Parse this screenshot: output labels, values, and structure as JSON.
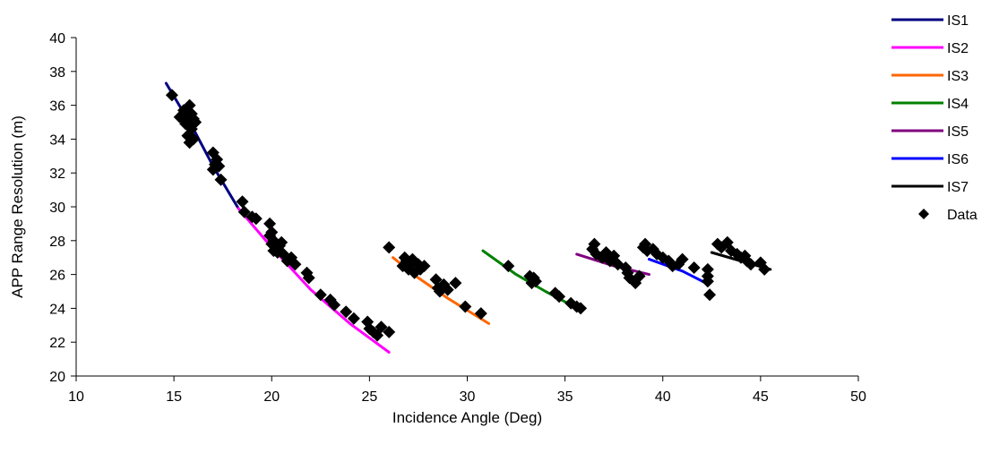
{
  "chart_data": {
    "type": "line",
    "title": "",
    "xlabel": "Incidence Angle (Deg)",
    "ylabel": "APP Range Resolution (m)",
    "xlim": [
      10,
      50
    ],
    "ylim": [
      20,
      40
    ],
    "xticks": [
      10,
      15,
      20,
      25,
      30,
      35,
      40,
      45,
      50
    ],
    "yticks": [
      20,
      22,
      24,
      26,
      28,
      30,
      32,
      34,
      36,
      38,
      40
    ],
    "grid": false,
    "legend_position": "right",
    "series": [
      {
        "name": "IS1",
        "color": "#000080",
        "x": [
          14.6,
          16.0,
          17.0,
          18.3
        ],
        "y": [
          37.3,
          34.6,
          32.4,
          29.9
        ]
      },
      {
        "name": "IS2",
        "color": "#FF00FF",
        "x": [
          18.3,
          20.0,
          22.0,
          24.0,
          26.0
        ],
        "y": [
          29.9,
          27.6,
          25.1,
          23.1,
          21.4
        ]
      },
      {
        "name": "IS3",
        "color": "#FF6600",
        "x": [
          26.2,
          27.5,
          29.0,
          31.1
        ],
        "y": [
          27.0,
          25.8,
          24.6,
          23.1
        ]
      },
      {
        "name": "IS4",
        "color": "#008000",
        "x": [
          30.8,
          32.5,
          34.0,
          35.8
        ],
        "y": [
          27.4,
          26.0,
          25.0,
          23.9
        ]
      },
      {
        "name": "IS5",
        "color": "#800080",
        "x": [
          35.6,
          37.5,
          39.3
        ],
        "y": [
          27.2,
          26.5,
          26.0
        ]
      },
      {
        "name": "IS6",
        "color": "#0000FF",
        "x": [
          39.3,
          41.0,
          42.2
        ],
        "y": [
          26.9,
          26.2,
          25.5
        ]
      },
      {
        "name": "IS7",
        "color": "#000000",
        "x": [
          42.5,
          44.0,
          45.5
        ],
        "y": [
          27.3,
          26.8,
          26.3
        ]
      },
      {
        "name": "Data",
        "color": "#000000",
        "marker": "diamond",
        "x": [
          14.9,
          15.3,
          15.5,
          15.6,
          15.7,
          15.8,
          15.9,
          15.9,
          16.0,
          16.0,
          16.1,
          15.8,
          15.6,
          15.7,
          17.0,
          17.1,
          17.2,
          17.3,
          17.0,
          17.4,
          18.5,
          18.6,
          19.0,
          19.2,
          19.9,
          19.9,
          20.0,
          20.0,
          20.1,
          20.1,
          20.2,
          20.3,
          20.4,
          20.5,
          20.6,
          20.8,
          21.0,
          21.2,
          21.8,
          21.9,
          22.5,
          23.0,
          23.2,
          23.8,
          24.2,
          24.9,
          25.0,
          25.2,
          25.4,
          25.6,
          26.0,
          26.0,
          26.7,
          26.8,
          26.9,
          27.0,
          27.1,
          27.2,
          27.3,
          27.5,
          27.6,
          27.8,
          28.4,
          28.5,
          28.6,
          28.8,
          29.0,
          29.4,
          29.9,
          30.7,
          32.1,
          33.2,
          33.3,
          33.4,
          33.5,
          34.5,
          34.7,
          35.3,
          35.6,
          35.8,
          36.4,
          36.5,
          36.6,
          36.9,
          37.1,
          37.3,
          37.5,
          37.7,
          38.1,
          38.2,
          38.3,
          38.6,
          38.8,
          39.0,
          39.1,
          39.2,
          39.5,
          39.7,
          40.0,
          40.3,
          40.5,
          40.8,
          41.0,
          41.6,
          42.3,
          42.3,
          42.3,
          42.4,
          42.8,
          43.0,
          43.3,
          43.5,
          43.8,
          44.0,
          44.2,
          44.3,
          44.5,
          45.0,
          45.2
        ],
        "y": [
          36.6,
          35.3,
          35.7,
          34.9,
          34.2,
          36.0,
          35.5,
          34.6,
          35.2,
          34.0,
          35.0,
          33.8,
          35.1,
          35.6,
          33.2,
          32.5,
          32.8,
          32.4,
          32.2,
          31.6,
          30.3,
          29.7,
          29.4,
          29.3,
          29.0,
          28.3,
          28.5,
          27.8,
          27.4,
          28.0,
          27.6,
          27.3,
          27.7,
          27.9,
          27.2,
          26.8,
          27.0,
          26.6,
          26.1,
          25.8,
          24.8,
          24.5,
          24.2,
          23.8,
          23.4,
          23.2,
          22.8,
          22.6,
          22.4,
          22.9,
          22.6,
          27.6,
          26.5,
          27.0,
          26.8,
          26.3,
          26.6,
          26.9,
          26.1,
          26.6,
          26.3,
          26.5,
          25.7,
          25.2,
          25.0,
          25.4,
          25.1,
          25.5,
          24.1,
          23.7,
          26.5,
          25.9,
          25.5,
          25.8,
          25.6,
          24.9,
          24.7,
          24.3,
          24.1,
          24.0,
          27.5,
          27.8,
          27.2,
          27.0,
          27.3,
          26.8,
          27.1,
          26.6,
          26.4,
          26.1,
          25.8,
          25.5,
          25.9,
          27.6,
          27.8,
          27.4,
          27.5,
          27.2,
          27.0,
          26.8,
          26.5,
          26.6,
          26.9,
          26.4,
          26.3,
          25.9,
          25.6,
          24.8,
          27.8,
          27.6,
          27.9,
          27.4,
          27.2,
          27.0,
          27.1,
          26.8,
          26.6,
          26.7,
          26.3
        ]
      }
    ]
  }
}
